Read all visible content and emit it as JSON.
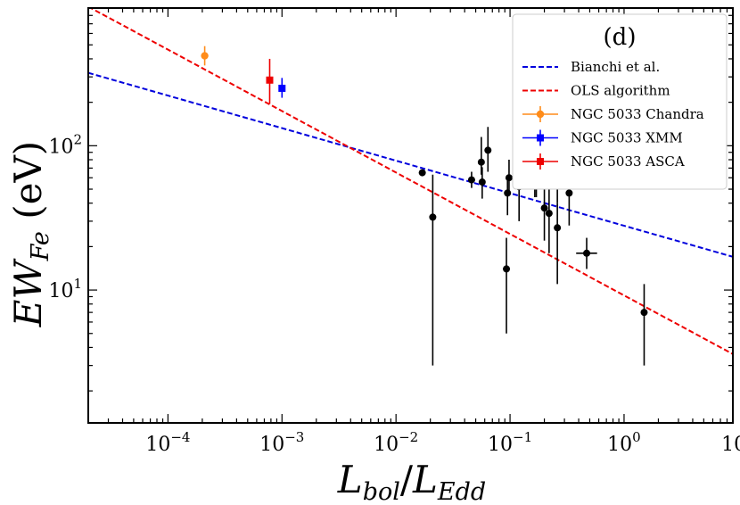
{
  "chart_data": {
    "type": "scatter",
    "panel_label": "(d)",
    "xlabel": {
      "main_left": "L",
      "sub_left": "bol",
      "slash": "/",
      "main_right": "L",
      "sub_right": "Edd"
    },
    "ylabel": {
      "main": "EW",
      "sub": "Fe",
      "unit": " (eV)"
    },
    "xscale": "log",
    "yscale": "log",
    "xlim": [
      2e-05,
      9
    ],
    "ylim": [
      1.2,
      900
    ],
    "grid": false,
    "legend_position": "top-right",
    "x_ticks": [
      {
        "value": 0.0001,
        "base": "10",
        "exp": "−4"
      },
      {
        "value": 0.001,
        "base": "10",
        "exp": "−3"
      },
      {
        "value": 0.01,
        "base": "10",
        "exp": "−2"
      },
      {
        "value": 0.1,
        "base": "10",
        "exp": "−1"
      },
      {
        "value": 1,
        "base": "10",
        "exp": "0"
      },
      {
        "value": 10,
        "base": "10",
        "exp": "1"
      }
    ],
    "y_ticks": [
      {
        "value": 10,
        "base": "10",
        "exp": "1"
      },
      {
        "value": 100,
        "base": "10",
        "exp": "2"
      }
    ],
    "lines": [
      {
        "name": "Bianchi et al.",
        "color": "#0000dd",
        "dash": "dashed",
        "x": [
          2e-05,
          9
        ],
        "y": [
          320,
          17
        ]
      },
      {
        "name": "OLS algorithm",
        "color": "#ee0000",
        "dash": "dashed",
        "x": [
          2e-05,
          9
        ],
        "y": [
          920,
          3.6
        ]
      }
    ],
    "special_points": [
      {
        "name": "NGC 5033 Chandra",
        "color": "#ff8c1a",
        "marker": "circle",
        "x": 0.00021,
        "y": 420,
        "ylo": 360,
        "yhi": 490
      },
      {
        "name": "NGC 5033 XMM",
        "color": "#0000ff",
        "marker": "square",
        "x": 0.001,
        "y": 250,
        "ylo": 215,
        "yhi": 295
      },
      {
        "name": "NGC 5033 ASCA",
        "color": "#ee0000",
        "marker": "square",
        "x": 0.00078,
        "y": 285,
        "ylo": 195,
        "yhi": 400
      }
    ],
    "points": [
      {
        "x": 0.017,
        "y": 65
      },
      {
        "x": 0.021,
        "y": 32,
        "ylo": 3,
        "yhi": 63
      },
      {
        "x": 0.046,
        "y": 58,
        "ylo": 51,
        "yhi": 66
      },
      {
        "x": 0.056,
        "y": 77,
        "ylo": 63,
        "yhi": 115
      },
      {
        "x": 0.057,
        "y": 56,
        "ylo": 43,
        "yhi": 71
      },
      {
        "x": 0.064,
        "y": 93,
        "ylo": 66,
        "yhi": 135
      },
      {
        "x": 0.093,
        "y": 14,
        "ylo": 5,
        "yhi": 23
      },
      {
        "x": 0.095,
        "y": 47,
        "ylo": 33,
        "yhi": 62
      },
      {
        "x": 0.098,
        "y": 60,
        "ylo": 46,
        "yhi": 80
      },
      {
        "x": 0.12,
        "y": 52,
        "ylo": 30,
        "yhi": 95
      },
      {
        "x": 0.165,
        "y": 65,
        "ylo": 44,
        "yhi": 96
      },
      {
        "x": 0.17,
        "y": 59,
        "ylo": 44,
        "yhi": 80
      },
      {
        "x": 0.2,
        "y": 37,
        "ylo": 22,
        "yhi": 60
      },
      {
        "x": 0.22,
        "y": 34,
        "ylo": 18,
        "yhi": 53
      },
      {
        "x": 0.26,
        "y": 72,
        "ylo": 40,
        "yhi": 110
      },
      {
        "x": 0.26,
        "y": 27,
        "ylo": 11,
        "yhi": 40
      },
      {
        "x": 0.33,
        "y": 47,
        "ylo": 28,
        "yhi": 65
      },
      {
        "x": 0.47,
        "y": 18,
        "ylo": 14,
        "yhi": 23,
        "xlo": 0.38,
        "xhi": 0.58
      },
      {
        "x": 1.5,
        "y": 7,
        "ylo": 3,
        "yhi": 11
      }
    ]
  }
}
